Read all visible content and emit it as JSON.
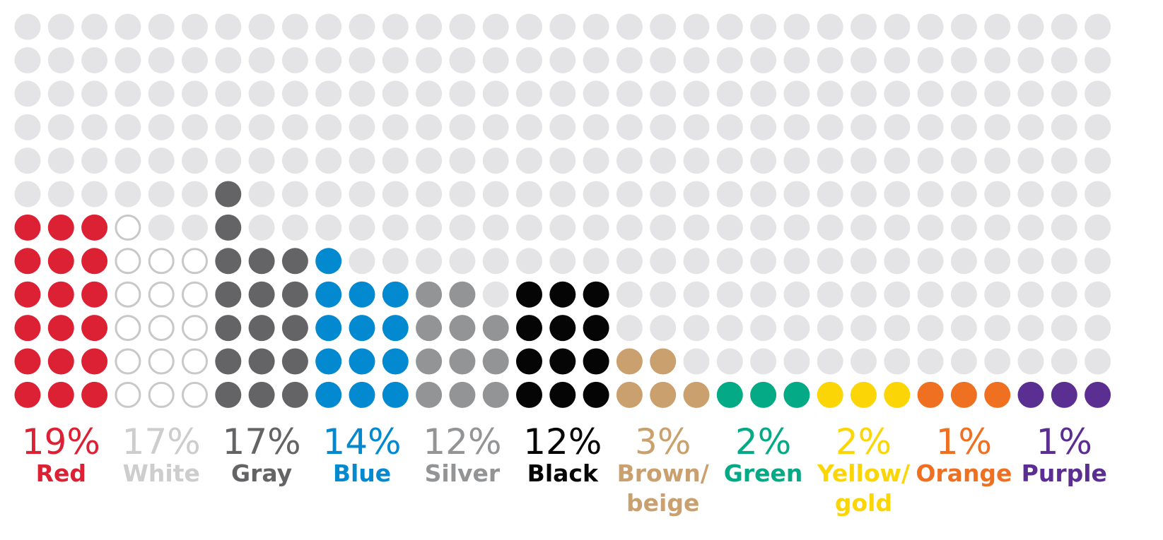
{
  "chart_data": {
    "type": "waffle",
    "title": "",
    "categories": [
      {
        "name": "Red",
        "lines": [
          "Red"
        ],
        "percent_label": "19%",
        "value": 19,
        "color": "#dc2134",
        "outline": false,
        "dots": [
          6,
          6,
          6
        ]
      },
      {
        "name": "White",
        "lines": [
          "White"
        ],
        "percent_label": "17%",
        "value": 17,
        "color": "#c8c8c8",
        "outline": true,
        "dots": [
          6,
          5,
          5
        ]
      },
      {
        "name": "Gray",
        "lines": [
          "Gray"
        ],
        "percent_label": "17%",
        "value": 17,
        "color": "#646466",
        "outline": false,
        "dots": [
          7,
          5,
          5
        ]
      },
      {
        "name": "Blue",
        "lines": [
          "Blue"
        ],
        "percent_label": "14%",
        "value": 14,
        "color": "#0389cf",
        "outline": false,
        "dots": [
          5,
          4,
          4
        ]
      },
      {
        "name": "Silver",
        "lines": [
          "Silver"
        ],
        "percent_label": "12%",
        "value": 12,
        "color": "#939496",
        "outline": false,
        "dots": [
          4,
          4,
          3
        ]
      },
      {
        "name": "Black",
        "lines": [
          "Black"
        ],
        "percent_label": "12%",
        "value": 12,
        "color": "#050505",
        "outline": false,
        "dots": [
          4,
          4,
          4
        ]
      },
      {
        "name": "Brown/beige",
        "lines": [
          "Brown/",
          "beige"
        ],
        "percent_label": "3%",
        "value": 3,
        "color": "#c9a06e",
        "outline": false,
        "dots": [
          2,
          2,
          1
        ]
      },
      {
        "name": "Green",
        "lines": [
          "Green"
        ],
        "percent_label": "2%",
        "value": 2,
        "color": "#04a985",
        "outline": false,
        "dots": [
          1,
          1,
          1
        ]
      },
      {
        "name": "Yellow/gold",
        "lines": [
          "Yellow/",
          "gold"
        ],
        "percent_label": "2%",
        "value": 2,
        "color": "#fbd506",
        "outline": false,
        "dots": [
          1,
          1,
          1
        ]
      },
      {
        "name": "Orange",
        "lines": [
          "Orange"
        ],
        "percent_label": "1%",
        "value": 1,
        "color": "#f07022",
        "outline": false,
        "dots": [
          1,
          1,
          1
        ]
      },
      {
        "name": "Purple",
        "lines": [
          "Purple"
        ],
        "percent_label": "1%",
        "value": 1,
        "color": "#5b2f92",
        "outline": false,
        "dots": [
          1,
          1,
          1
        ]
      }
    ],
    "total_rows": 12,
    "background_dot_color": "#e4e4e6",
    "label_colors": {
      "White": "#cdcdcd"
    }
  }
}
